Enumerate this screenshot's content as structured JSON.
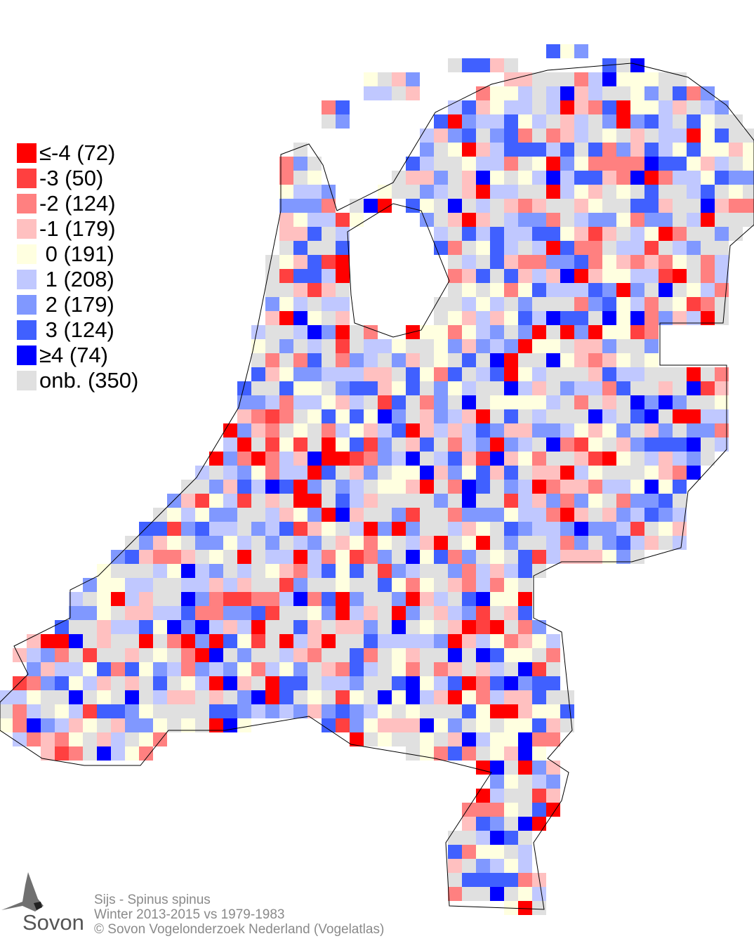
{
  "legend": {
    "items": [
      {
        "label": "≤-4 (72)",
        "color": "#ff0000",
        "count": 72
      },
      {
        "label": "-3 (50)",
        "color": "#ff4040",
        "count": 50
      },
      {
        "label": "-2 (124)",
        "color": "#ff8080",
        "count": 124
      },
      {
        "label": "-1 (179)",
        "color": "#ffc0c0",
        "count": 179
      },
      {
        "label": " 0 (191)",
        "color": "#ffffe0",
        "count": 191
      },
      {
        "label": " 1 (208)",
        "color": "#c0c8ff",
        "count": 208
      },
      {
        "label": " 2 (179)",
        "color": "#8098ff",
        "count": 179
      },
      {
        "label": " 3 (124)",
        "color": "#4060ff",
        "count": 124
      },
      {
        "label": "≥4 (74)",
        "color": "#0000ff",
        "count": 74
      },
      {
        "label": "onb. (350)",
        "color": "#e0e0e0",
        "count": 350
      }
    ]
  },
  "footer": {
    "species": "Sijs - Spinus spinus",
    "period": "Winter 2013-2015 vs 1979-1983",
    "copyright": "© Sovon Vogelonderzoek Nederland (Vogelatlas)"
  },
  "logo": {
    "text": "Sovon"
  }
}
